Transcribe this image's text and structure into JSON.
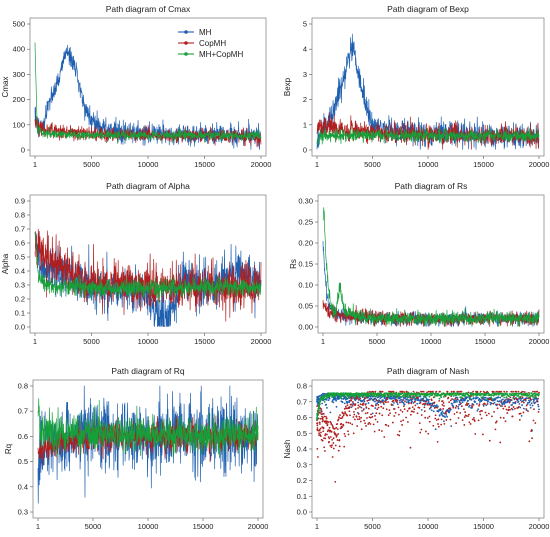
{
  "colors": {
    "MH": "#1f5fb0",
    "CopMH": "#b01e1e",
    "MH+CopMH": "#16a03a",
    "frame": "#8a8a8a"
  },
  "legend_labels": [
    "MH",
    "CopMH",
    "MH+CopMH"
  ],
  "legend_location": "top-right of the Cmax panel",
  "chart_data": [
    {
      "type": "line",
      "title": "Path diagram of  Cmax",
      "ylabel": "Cmax",
      "xlim": [
        1,
        20000
      ],
      "ylim": [
        0,
        500
      ],
      "xticks": [
        "1",
        "5000",
        "10000",
        "15000",
        "20000"
      ],
      "xtick_values": [
        1,
        5000,
        10000,
        15000,
        20000
      ],
      "yticks": [
        "0",
        "100",
        "200",
        "300",
        "400",
        "500"
      ],
      "ytick_values": [
        0,
        100,
        200,
        300,
        400,
        500
      ],
      "series": [
        {
          "name": "MH",
          "x": [
            1,
            200,
            600,
            1000,
            1400,
            1800,
            2200,
            2600,
            3000,
            3200,
            3500,
            4000,
            4500,
            5000,
            6000,
            7000,
            8000,
            10000,
            12000,
            14000,
            16000,
            18000,
            20000
          ],
          "y": [
            150,
            100,
            85,
            150,
            210,
            240,
            300,
            370,
            400,
            350,
            330,
            250,
            160,
            120,
            85,
            75,
            70,
            65,
            62,
            60,
            62,
            60,
            58
          ],
          "noise": 20,
          "style": "line"
        },
        {
          "name": "CopMH",
          "x": [
            1,
            300,
            1000,
            2000,
            3000,
            4000,
            5000,
            6000,
            8000,
            12000,
            16000,
            20000
          ],
          "y": [
            110,
            90,
            80,
            75,
            70,
            68,
            65,
            63,
            60,
            58,
            57,
            56
          ],
          "noise": 14,
          "style": "line"
        },
        {
          "name": "MH+CopMH",
          "x": [
            1,
            200,
            1000,
            5000,
            10000,
            20000
          ],
          "y": [
            420,
            80,
            65,
            60,
            58,
            57
          ],
          "noise": 9,
          "style": "line"
        }
      ]
    },
    {
      "type": "line",
      "title": "Path diagram of  Bexp",
      "ylabel": "Bexp",
      "xlim": [
        1,
        20000
      ],
      "ylim": [
        0,
        5
      ],
      "xticks": [
        "1",
        "5000",
        "10000",
        "15000",
        "20000"
      ],
      "xtick_values": [
        1,
        5000,
        10000,
        15000,
        20000
      ],
      "yticks": [
        "0",
        "1",
        "2",
        "3",
        "4",
        "5"
      ],
      "ytick_values": [
        0,
        1,
        2,
        3,
        4,
        5
      ],
      "series": [
        {
          "name": "MH",
          "x": [
            1,
            500,
            1000,
            1500,
            2000,
            2500,
            3000,
            3300,
            3600,
            4000,
            4500,
            5000,
            6000,
            8000,
            10000,
            14000,
            20000
          ],
          "y": [
            0.3,
            0.8,
            1.2,
            1.6,
            2.2,
            3.0,
            3.9,
            4.1,
            3.2,
            2.5,
            1.6,
            1.0,
            0.8,
            0.7,
            0.65,
            0.6,
            0.55
          ],
          "noise": 0.25,
          "style": "line"
        },
        {
          "name": "CopMH",
          "x": [
            1,
            1000,
            2000,
            3000,
            5000,
            8000,
            12000,
            20000
          ],
          "y": [
            0.9,
            0.95,
            0.9,
            0.8,
            0.7,
            0.62,
            0.58,
            0.55
          ],
          "noise": 0.2,
          "style": "line"
        },
        {
          "name": "MH+CopMH",
          "x": [
            1,
            300,
            2000,
            10000,
            20000
          ],
          "y": [
            0.4,
            0.55,
            0.58,
            0.57,
            0.56
          ],
          "noise": 0.12,
          "style": "line"
        }
      ]
    },
    {
      "type": "line",
      "title": "Path diagram of  Alpha",
      "ylabel": "Alpha",
      "xlim": [
        1,
        20000
      ],
      "ylim": [
        0,
        0.9
      ],
      "xticks": [
        "1",
        "5000",
        "10000",
        "15000",
        "20000"
      ],
      "xtick_values": [
        1,
        5000,
        10000,
        15000,
        20000
      ],
      "yticks": [
        "0.0",
        "0.1",
        "0.2",
        "0.3",
        "0.4",
        "0.5",
        "0.6",
        "0.7",
        "0.8",
        "0.9"
      ],
      "ytick_values": [
        0,
        0.1,
        0.2,
        0.3,
        0.4,
        0.5,
        0.6,
        0.7,
        0.8,
        0.9
      ],
      "series": [
        {
          "name": "MH",
          "x": [
            1,
            200,
            1000,
            2000,
            3000,
            4000,
            5000,
            6000,
            7000,
            8000,
            9000,
            10000,
            10500,
            11000,
            11500,
            12000,
            12500,
            13000,
            14000,
            15000,
            16000,
            17000,
            18000,
            19000,
            20000
          ],
          "y": [
            0.75,
            0.55,
            0.42,
            0.4,
            0.38,
            0.33,
            0.3,
            0.3,
            0.28,
            0.27,
            0.26,
            0.22,
            0.12,
            0.06,
            0.04,
            0.08,
            0.18,
            0.3,
            0.36,
            0.26,
            0.3,
            0.36,
            0.4,
            0.35,
            0.3
          ],
          "noise": 0.08,
          "style": "line"
        },
        {
          "name": "CopMH",
          "x": [
            1,
            500,
            1000,
            2000,
            3000,
            4000,
            5000,
            7000,
            9000,
            12000,
            20000
          ],
          "y": [
            0.6,
            0.55,
            0.5,
            0.45,
            0.4,
            0.36,
            0.33,
            0.3,
            0.29,
            0.28,
            0.28
          ],
          "noise": 0.08,
          "style": "line"
        },
        {
          "name": "MH+CopMH",
          "x": [
            1,
            300,
            1000,
            3000,
            10000,
            20000
          ],
          "y": [
            0.7,
            0.35,
            0.3,
            0.28,
            0.28,
            0.28
          ],
          "noise": 0.03,
          "style": "line"
        }
      ]
    },
    {
      "type": "line",
      "title": "Path diagram of Rs",
      "ylabel": "Rs",
      "xlim": [
        1,
        20000
      ],
      "ylim": [
        0,
        0.3
      ],
      "xticks": [
        "1",
        "5000",
        "10000",
        "15000",
        "20000"
      ],
      "xtick_values": [
        1,
        5000,
        10000,
        15000,
        20000
      ],
      "yticks": [
        "0.00",
        "0.05",
        "0.10",
        "0.15",
        "0.20",
        "0.25",
        "0.30"
      ],
      "ytick_values": [
        0,
        0.05,
        0.1,
        0.15,
        0.2,
        0.25,
        0.3
      ],
      "series": [
        {
          "name": "MH",
          "x": [
            1,
            200,
            500,
            1000,
            2000,
            4000,
            8000,
            12000,
            16000,
            20000
          ],
          "y": [
            0.2,
            0.12,
            0.05,
            0.03,
            0.025,
            0.022,
            0.02,
            0.02,
            0.022,
            0.02
          ],
          "noise": 0.008,
          "style": "line"
        },
        {
          "name": "CopMH",
          "x": [
            1,
            500,
            1500,
            3000,
            6000,
            20000
          ],
          "y": [
            0.06,
            0.04,
            0.03,
            0.025,
            0.02,
            0.02
          ],
          "noise": 0.008,
          "style": "line"
        },
        {
          "name": "MH+CopMH",
          "x": [
            1,
            100,
            300,
            700,
            1200,
            1500,
            2000,
            3000,
            6000,
            20000
          ],
          "y": [
            0.25,
            0.28,
            0.15,
            0.05,
            0.03,
            0.1,
            0.04,
            0.025,
            0.02,
            0.02
          ],
          "noise": 0.008,
          "style": "line"
        }
      ]
    },
    {
      "type": "line",
      "title": "Path diagram of Rq",
      "ylabel": "Rq",
      "xlim": [
        1,
        20000
      ],
      "ylim": [
        0.3,
        0.8
      ],
      "xticks": [
        "1",
        "5000",
        "10000",
        "15000",
        "20000"
      ],
      "xtick_values": [
        1,
        5000,
        10000,
        15000,
        20000
      ],
      "yticks": [
        "0.3",
        "0.4",
        "0.5",
        "0.6",
        "0.7",
        "0.8"
      ],
      "ytick_values": [
        0.3,
        0.4,
        0.5,
        0.6,
        0.7,
        0.8
      ],
      "series": [
        {
          "name": "MH",
          "x": [
            1,
            200,
            1000,
            3000,
            6000,
            10000,
            14000,
            18000,
            20000
          ],
          "y": [
            0.45,
            0.55,
            0.58,
            0.6,
            0.6,
            0.6,
            0.6,
            0.6,
            0.6
          ],
          "noise": 0.07,
          "style": "line"
        },
        {
          "name": "CopMH",
          "x": [
            1,
            500,
            1500,
            3000,
            6000,
            20000
          ],
          "y": [
            0.55,
            0.56,
            0.57,
            0.58,
            0.6,
            0.6
          ],
          "noise": 0.03,
          "style": "line"
        },
        {
          "name": "MH+CopMH",
          "x": [
            1,
            200,
            1000,
            5000,
            20000
          ],
          "y": [
            0.7,
            0.63,
            0.62,
            0.61,
            0.61
          ],
          "noise": 0.035,
          "style": "line"
        }
      ]
    },
    {
      "type": "scatter",
      "title": "Path diagram of  Nash",
      "ylabel": "Nash",
      "xlim": [
        1,
        20000
      ],
      "ylim": [
        0,
        0.8
      ],
      "xticks": [
        "1",
        "5000",
        "10000",
        "15000",
        "20000"
      ],
      "xtick_values": [
        1,
        5000,
        10000,
        15000,
        20000
      ],
      "yticks": [
        "0.0",
        "0.1",
        "0.2",
        "0.3",
        "0.4",
        "0.5",
        "0.6",
        "0.7",
        "0.8"
      ],
      "ytick_values": [
        0,
        0.1,
        0.2,
        0.3,
        0.4,
        0.5,
        0.6,
        0.7,
        0.8
      ],
      "series": [
        {
          "name": "MH",
          "x": [
            1,
            500,
            2000,
            6000,
            10000,
            11500,
            12500,
            16000,
            20000
          ],
          "y": [
            0.72,
            0.74,
            0.74,
            0.73,
            0.72,
            0.62,
            0.72,
            0.72,
            0.71
          ],
          "noise": 0.03,
          "style": "scatter"
        },
        {
          "name": "CopMH",
          "x": [
            1,
            500,
            1500,
            3000,
            5000,
            20000
          ],
          "y": [
            0.65,
            0.6,
            0.5,
            0.68,
            0.73,
            0.74
          ],
          "noise": 0.12,
          "style": "scatter"
        },
        {
          "name": "MH+CopMH",
          "x": [
            1,
            300,
            1000,
            3000,
            20000
          ],
          "y": [
            0.6,
            0.72,
            0.75,
            0.75,
            0.75
          ],
          "noise": 0.012,
          "style": "scatter"
        }
      ]
    }
  ]
}
